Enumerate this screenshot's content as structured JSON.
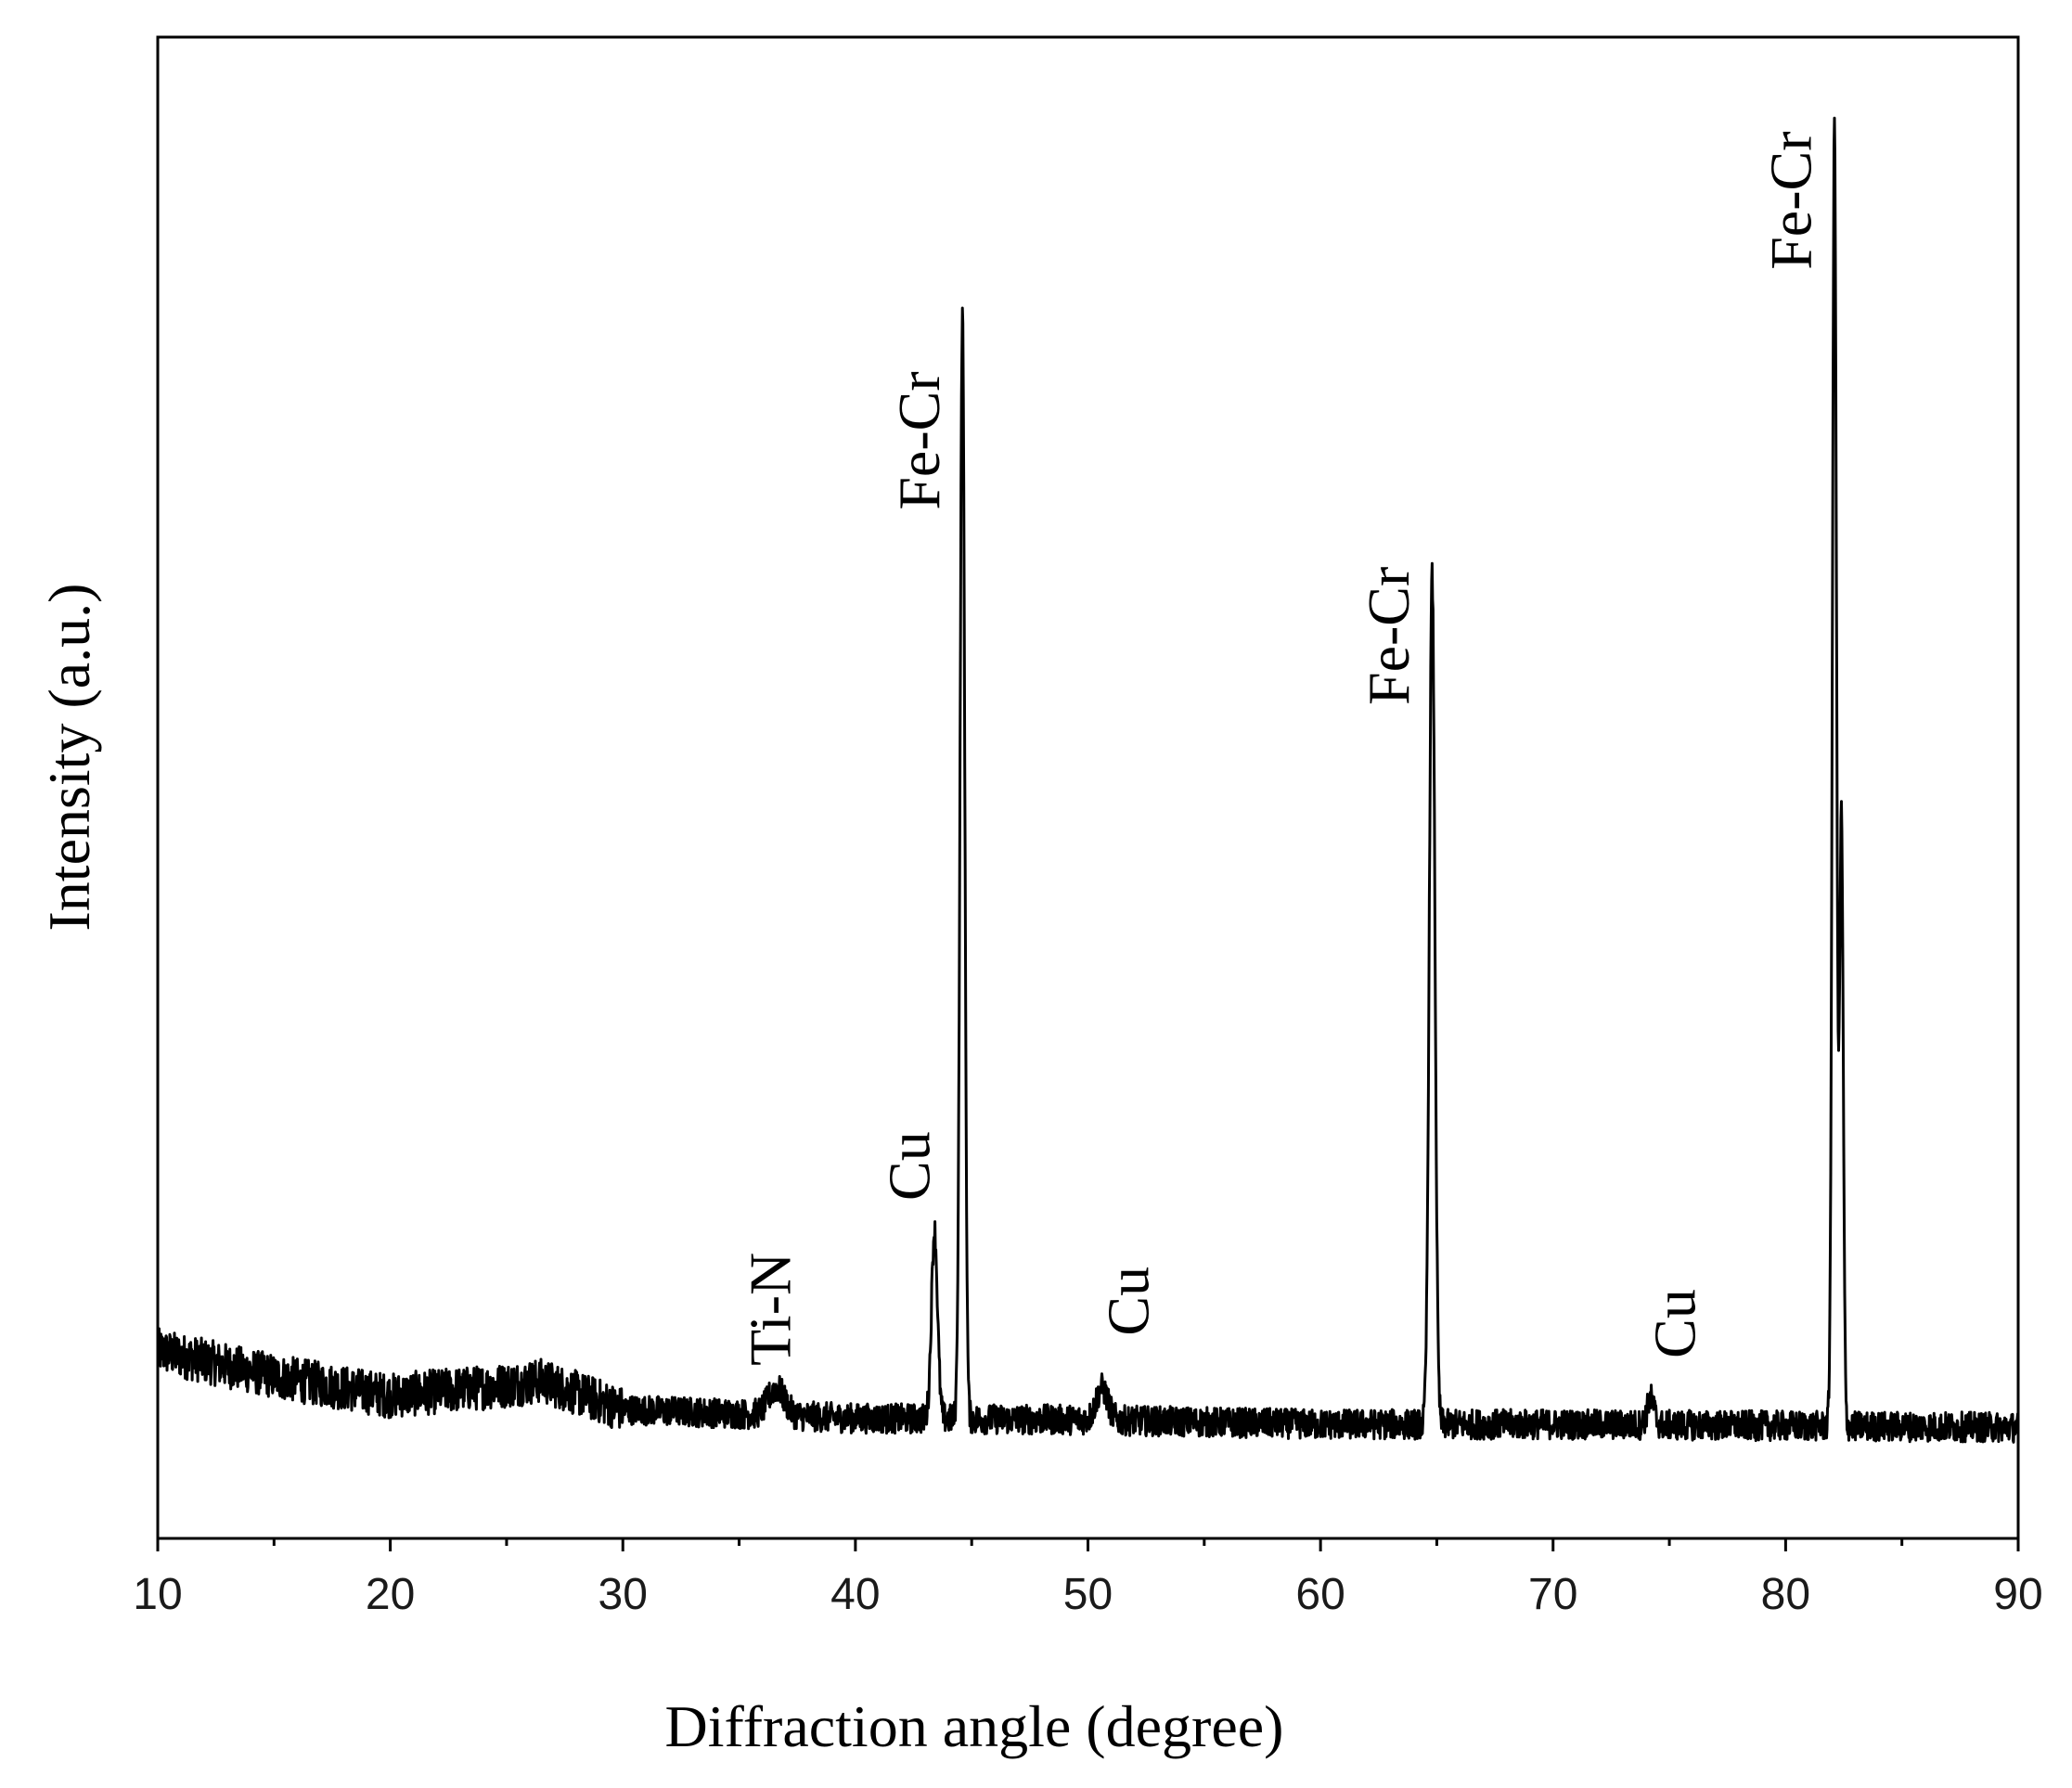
{
  "chart_data": {
    "type": "line",
    "xlabel": "Diffraction angle (degree)",
    "ylabel": "Intensity (a.u.)",
    "xlim": [
      10,
      90
    ],
    "ylim": [
      0,
      100
    ],
    "x_ticks": [
      10,
      20,
      30,
      40,
      50,
      60,
      70,
      80,
      90
    ],
    "x_tick_labels": [
      "10",
      "20",
      "30",
      "40",
      "50",
      "60",
      "70",
      "80",
      "90"
    ],
    "y_ticks_labeled": false,
    "grid": false,
    "series": [
      {
        "baseline": [
          [
            10,
            12.5
          ],
          [
            15,
            10.8
          ],
          [
            20,
            9.5
          ],
          [
            25,
            10.2
          ],
          [
            26.5,
            10.5
          ],
          [
            30,
            8.6
          ],
          [
            40,
            8.0
          ],
          [
            50,
            7.9
          ],
          [
            60,
            7.6
          ],
          [
            70,
            7.6
          ],
          [
            80,
            7.5
          ],
          [
            90,
            7.4
          ]
        ],
        "peaks": [
          {
            "x": 36.6,
            "y": 10.0,
            "width": 0.35
          },
          {
            "x": 43.4,
            "y": 20.5,
            "width": 0.13
          },
          {
            "x": 44.6,
            "y": 81.5,
            "width": 0.1
          },
          {
            "x": 50.6,
            "y": 10.0,
            "width": 0.25
          },
          {
            "x": 64.8,
            "y": 64.0,
            "width": 0.12
          },
          {
            "x": 74.2,
            "y": 9.3,
            "width": 0.15
          },
          {
            "x": 82.1,
            "y": 94.0,
            "width": 0.09
          },
          {
            "x": 82.4,
            "y": 48.0,
            "width": 0.08
          }
        ],
        "noise_amplitude": 1.0
      }
    ],
    "annotations": [
      {
        "text": "Ti-N",
        "x": 36.6,
        "y": 11.5
      },
      {
        "text": "Cu",
        "x": 42.6,
        "y": 22.5
      },
      {
        "text": "Fe-Cr",
        "x": 43.0,
        "y": 68.5
      },
      {
        "text": "Cu",
        "x": 52.0,
        "y": 13.5
      },
      {
        "text": "Fe-Cr",
        "x": 63.2,
        "y": 55.5
      },
      {
        "text": "Cu",
        "x": 75.5,
        "y": 12.0
      },
      {
        "text": "Fe-Cr",
        "x": 80.5,
        "y": 84.5
      }
    ]
  }
}
